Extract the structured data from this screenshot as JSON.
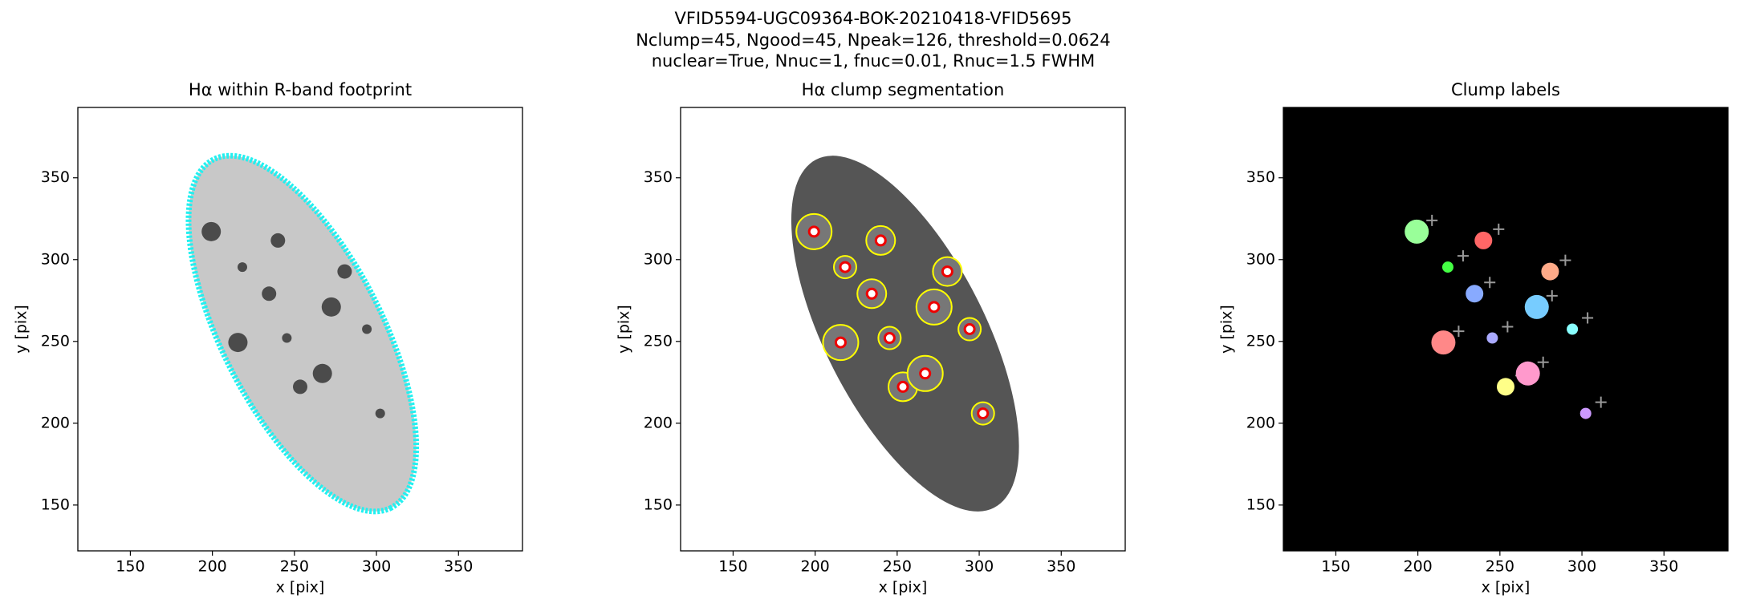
{
  "suptitle": [
    "VFID5594-UGC09364-BOK-20210418-VFID5695",
    "Nclump=45, Ngood=45, Npeak=126, threshold=0.0624",
    "nuclear=True, Nnuc=1, fnuc=0.01, Rnuc=1.5 FWHM"
  ],
  "chart_data": [
    {
      "type": "image",
      "title": "Hα within R-band footprint",
      "xlabel": "x [pix]",
      "ylabel": "y [pix]",
      "xlim": [
        118,
        389
      ],
      "ylim": [
        122,
        393
      ],
      "xticks": [
        150,
        200,
        250,
        300,
        350
      ],
      "yticks": [
        150,
        200,
        250,
        300,
        350
      ]
    },
    {
      "type": "image",
      "title": "Hα clump segmentation",
      "xlabel": "x [pix]",
      "ylabel": "y [pix]",
      "xlim": [
        118,
        389
      ],
      "ylim": [
        122,
        393
      ],
      "xticks": [
        150,
        200,
        250,
        300,
        350
      ],
      "yticks": [
        150,
        200,
        250,
        300,
        350
      ]
    },
    {
      "type": "image",
      "title": "Clump labels",
      "xlabel": "x [pix]",
      "ylabel": "y [pix]",
      "xlim": [
        118,
        389
      ],
      "ylim": [
        122,
        393
      ],
      "xticks": [
        150,
        200,
        250,
        300,
        350
      ],
      "yticks": [
        150,
        200,
        250,
        300,
        350
      ]
    }
  ]
}
